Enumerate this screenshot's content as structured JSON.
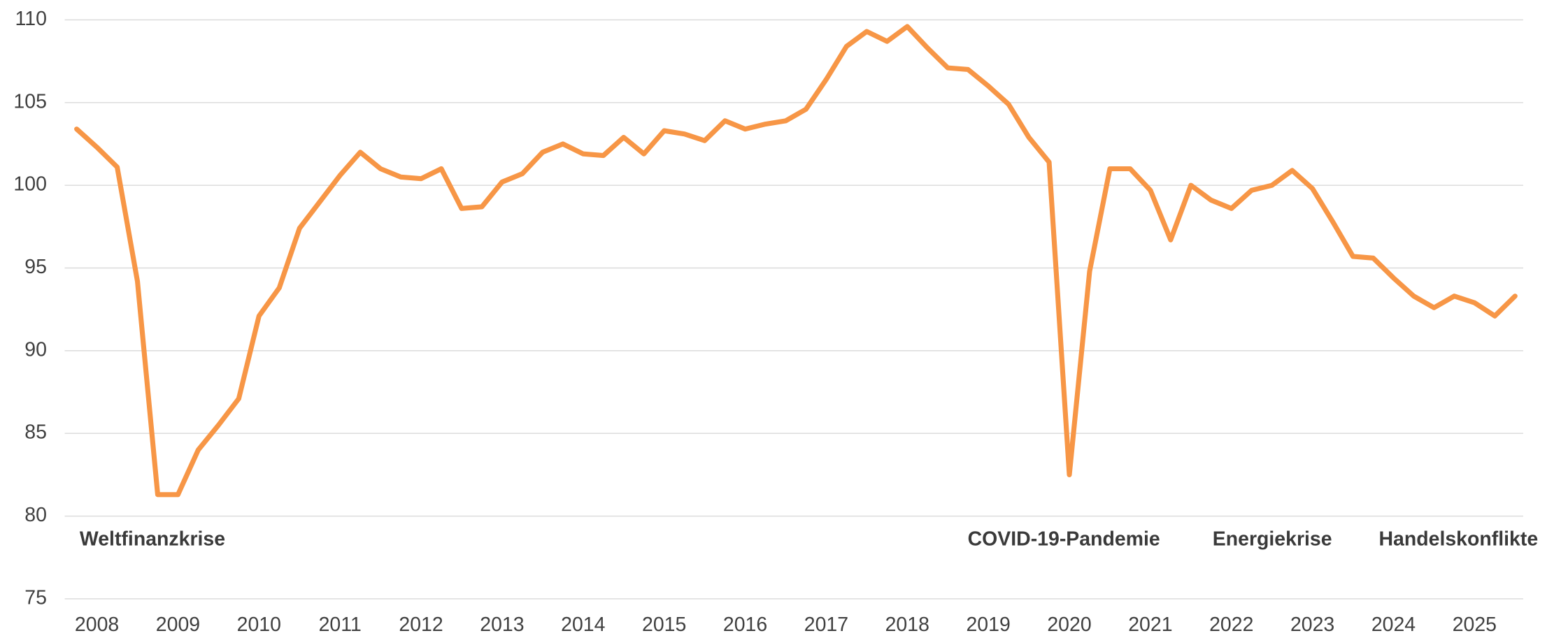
{
  "chart_data": {
    "type": "line",
    "categories": [
      null,
      "2008",
      null,
      null,
      null,
      "2009",
      null,
      null,
      null,
      "2010",
      null,
      null,
      null,
      "2011",
      null,
      null,
      null,
      "2012",
      null,
      null,
      null,
      "2013",
      null,
      null,
      null,
      "2014",
      null,
      null,
      null,
      "2015",
      null,
      null,
      null,
      "2016",
      null,
      null,
      null,
      "2017",
      null,
      null,
      null,
      "2018",
      null,
      null,
      null,
      "2019",
      null,
      null,
      null,
      "2020",
      null,
      null,
      null,
      "2021",
      null,
      null,
      null,
      "2022",
      null,
      null,
      null,
      "2023",
      null,
      null,
      null,
      "2024",
      null,
      null,
      null,
      "2025",
      null,
      null
    ],
    "series": [
      {
        "color": "#f79646",
        "values": [
          103.4,
          102.3,
          101.1,
          94.2,
          81.3,
          81.3,
          84.0,
          85.5,
          87.1,
          92.1,
          93.8,
          97.4,
          99.0,
          100.6,
          102.0,
          101.0,
          100.5,
          100.4,
          101.0,
          98.6,
          98.7,
          100.2,
          100.7,
          102.0,
          102.5,
          101.9,
          101.8,
          102.9,
          101.9,
          103.3,
          103.1,
          102.7,
          103.9,
          103.4,
          103.7,
          103.9,
          104.6,
          106.4,
          108.4,
          109.3,
          108.7,
          109.6,
          108.3,
          107.1,
          107.0,
          106.0,
          104.9,
          102.9,
          101.4,
          82.5,
          94.8,
          101.0,
          101.0,
          99.7,
          96.7,
          100.0,
          99.1,
          98.6,
          99.7,
          100.0,
          100.9,
          99.8,
          97.8,
          95.7,
          95.6,
          94.4,
          93.3,
          92.6,
          93.3,
          92.9,
          92.1,
          93.3
        ]
      }
    ],
    "ylim": [
      75,
      110
    ],
    "yticks": [
      75,
      80,
      85,
      90,
      95,
      100,
      105,
      110
    ],
    "grid": true,
    "annotations": [
      "Weltfinanzkrise",
      "COVID-19-Pandemie",
      "Energiekrise",
      "Handelskonflikte"
    ]
  }
}
